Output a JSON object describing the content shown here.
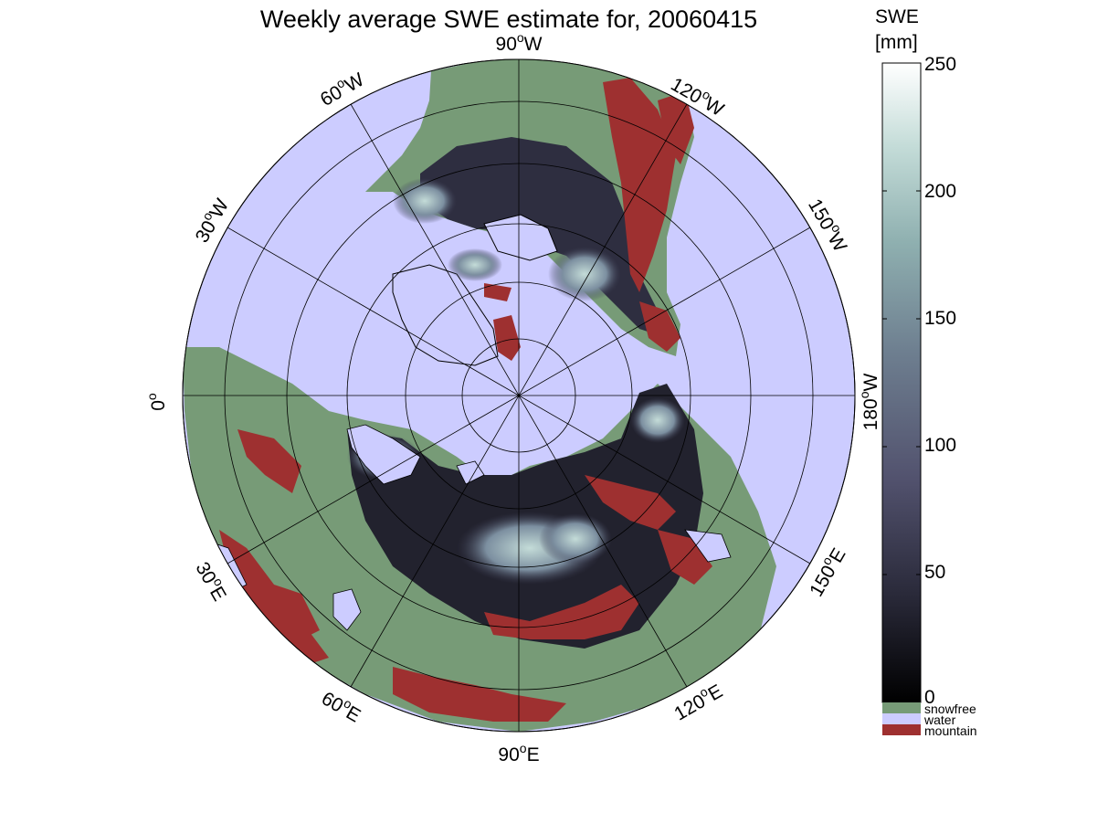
{
  "title": "Weekly average SWE estimate for, 20060415",
  "colorbar": {
    "label_line1": "SWE",
    "label_line2": "[mm]",
    "ticks": [
      "250",
      "200",
      "150",
      "100",
      "50",
      "0"
    ],
    "tick_values": [
      250,
      200,
      150,
      100,
      50,
      0
    ],
    "range": [
      0,
      250
    ],
    "colormap": "bone",
    "colors": [
      "#000000",
      "#2a2a3a",
      "#52526e",
      "#6e7f90",
      "#8fb0b0",
      "#c4dcd8",
      "#ffffff"
    ]
  },
  "legend": [
    {
      "label": "snowfree",
      "color": "#779b77"
    },
    {
      "label": "water",
      "color": "#ccccff"
    },
    {
      "label": "mountain",
      "color": "#9e3030"
    }
  ],
  "map": {
    "projection": "polar stereographic (north)",
    "lon_labels": [
      {
        "base": "90",
        "suffix": "W",
        "lon": "90W"
      },
      {
        "base": "120",
        "suffix": "W",
        "lon": "120W"
      },
      {
        "base": "150",
        "suffix": "W",
        "lon": "150W"
      },
      {
        "base": "180",
        "suffix": "W",
        "lon": "180W"
      },
      {
        "base": "150",
        "suffix": "E",
        "lon": "150E"
      },
      {
        "base": "120",
        "suffix": "E",
        "lon": "120E"
      },
      {
        "base": "90",
        "suffix": "E",
        "lon": "90E"
      },
      {
        "base": "60",
        "suffix": "E",
        "lon": "60E"
      },
      {
        "base": "30",
        "suffix": "E",
        "lon": "30E"
      },
      {
        "base": "0",
        "suffix": "",
        "lon": "0"
      },
      {
        "base": "30",
        "suffix": "W",
        "lon": "30W"
      },
      {
        "base": "60",
        "suffix": "W",
        "lon": "60W"
      }
    ],
    "degree_symbol": "o",
    "colors": {
      "water": "#ccccff",
      "snowfree": "#779b77",
      "mountain": "#9e3030",
      "snow_dark": "#1a1a24",
      "snow_mid": "#5a5a78",
      "snow_light": "#a9c8c4"
    }
  }
}
